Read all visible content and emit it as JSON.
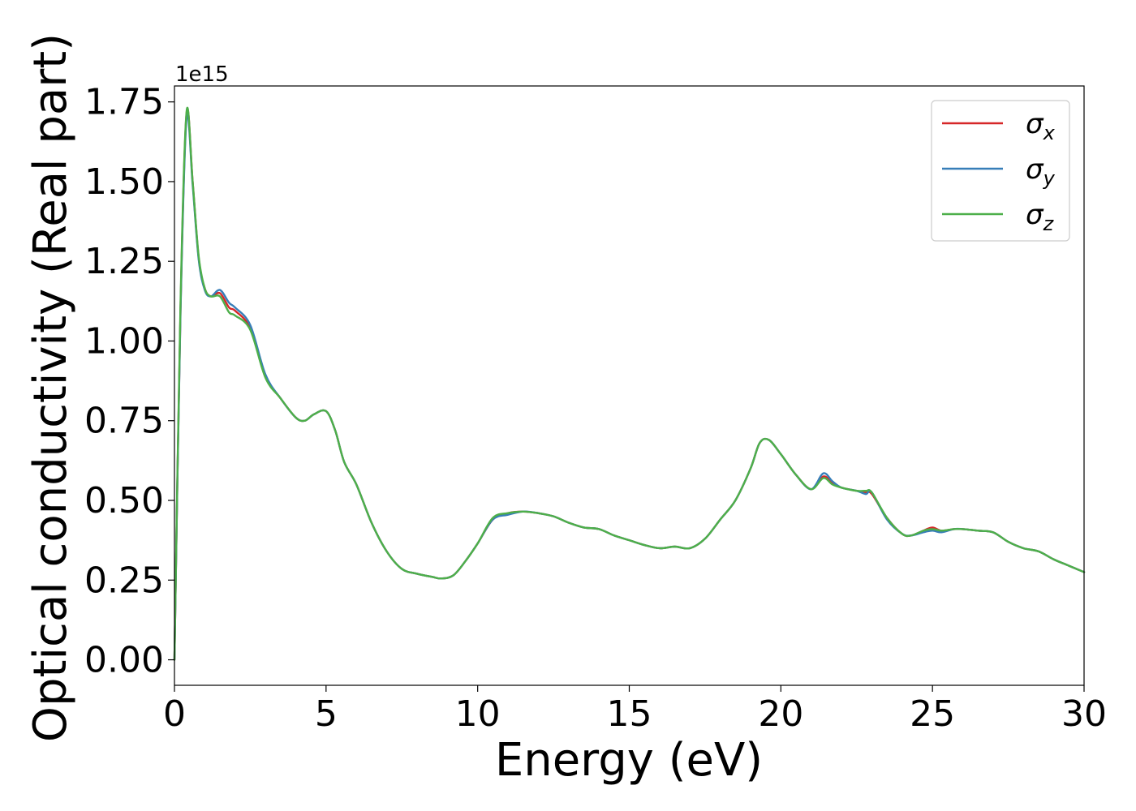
{
  "chart_data": {
    "type": "line",
    "title": "",
    "xlabel": "Energy (eV)",
    "ylabel": "Optical conductivity (Real part)",
    "offset_text": "1e15",
    "xlim": [
      0,
      30
    ],
    "ylim": [
      -0.08,
      1.8
    ],
    "x_ticks": [
      0,
      5,
      10,
      15,
      20,
      25,
      30
    ],
    "x_tick_labels": [
      "0",
      "5",
      "10",
      "15",
      "20",
      "25",
      "30"
    ],
    "y_ticks": [
      0,
      0.25,
      0.5,
      0.75,
      1.0,
      1.25,
      1.5,
      1.75
    ],
    "y_tick_labels": [
      "0.00",
      "0.25",
      "0.50",
      "0.75",
      "1.00",
      "1.25",
      "1.50",
      "1.75"
    ],
    "grid": false,
    "legend_position": "top-right",
    "series": [
      {
        "name": "σx",
        "base": "σ",
        "sub": "x",
        "color": "#d62728",
        "x": [
          0,
          0.2,
          0.4,
          0.6,
          0.8,
          1.0,
          1.2,
          1.5,
          1.8,
          2.0,
          2.5,
          3.0,
          3.5,
          4.0,
          4.3,
          4.6,
          5.0,
          5.3,
          5.6,
          6.0,
          6.5,
          7.0,
          7.5,
          8.0,
          8.5,
          8.8,
          9.2,
          9.6,
          10.0,
          10.5,
          11.0,
          11.5,
          12.0,
          12.5,
          13.0,
          13.5,
          14.0,
          14.5,
          15.0,
          15.5,
          16.0,
          16.5,
          17.0,
          17.5,
          18.0,
          18.5,
          19.0,
          19.3,
          19.6,
          20.0,
          20.5,
          21.0,
          21.4,
          21.7,
          22.0,
          22.5,
          22.8,
          23.0,
          23.5,
          24.0,
          24.3,
          24.7,
          25.0,
          25.3,
          25.7,
          26.0,
          26.5,
          27.0,
          27.5,
          28.0,
          28.5,
          29.0,
          29.5,
          30.0
        ],
        "y": [
          0.0,
          1.1,
          1.715,
          1.5,
          1.26,
          1.165,
          1.14,
          1.15,
          1.105,
          1.095,
          1.04,
          0.89,
          0.82,
          0.76,
          0.75,
          0.77,
          0.78,
          0.72,
          0.62,
          0.55,
          0.43,
          0.34,
          0.285,
          0.27,
          0.26,
          0.255,
          0.265,
          0.31,
          0.365,
          0.44,
          0.46,
          0.465,
          0.46,
          0.45,
          0.43,
          0.415,
          0.41,
          0.39,
          0.375,
          0.36,
          0.35,
          0.355,
          0.35,
          0.38,
          0.44,
          0.5,
          0.6,
          0.68,
          0.69,
          0.645,
          0.58,
          0.535,
          0.575,
          0.555,
          0.54,
          0.53,
          0.525,
          0.52,
          0.445,
          0.395,
          0.39,
          0.405,
          0.415,
          0.405,
          0.41,
          0.41,
          0.405,
          0.4,
          0.37,
          0.35,
          0.34,
          0.315,
          0.295,
          0.275
        ]
      },
      {
        "name": "σy",
        "base": "σ",
        "sub": "y",
        "color": "#377eb8",
        "x": [
          0,
          0.2,
          0.4,
          0.6,
          0.8,
          1.0,
          1.2,
          1.5,
          1.8,
          2.0,
          2.5,
          3.0,
          3.5,
          4.0,
          4.3,
          4.6,
          5.0,
          5.3,
          5.6,
          6.0,
          6.5,
          7.0,
          7.5,
          8.0,
          8.5,
          8.8,
          9.2,
          9.6,
          10.0,
          10.5,
          11.0,
          11.5,
          12.0,
          12.5,
          13.0,
          13.5,
          14.0,
          14.5,
          15.0,
          15.5,
          16.0,
          16.5,
          17.0,
          17.5,
          18.0,
          18.5,
          19.0,
          19.3,
          19.6,
          20.0,
          20.5,
          21.0,
          21.4,
          21.7,
          22.0,
          22.5,
          22.8,
          23.0,
          23.5,
          24.0,
          24.3,
          24.7,
          25.0,
          25.3,
          25.7,
          26.0,
          26.5,
          27.0,
          27.5,
          28.0,
          28.5,
          29.0,
          29.5,
          30.0
        ],
        "y": [
          0.0,
          1.09,
          1.7,
          1.49,
          1.255,
          1.16,
          1.14,
          1.16,
          1.12,
          1.105,
          1.05,
          0.895,
          0.82,
          0.76,
          0.75,
          0.77,
          0.78,
          0.72,
          0.62,
          0.55,
          0.43,
          0.34,
          0.285,
          0.27,
          0.26,
          0.255,
          0.265,
          0.31,
          0.365,
          0.44,
          0.455,
          0.465,
          0.46,
          0.45,
          0.43,
          0.415,
          0.41,
          0.39,
          0.375,
          0.36,
          0.35,
          0.355,
          0.35,
          0.38,
          0.44,
          0.5,
          0.6,
          0.68,
          0.69,
          0.645,
          0.58,
          0.535,
          0.585,
          0.56,
          0.54,
          0.53,
          0.52,
          0.525,
          0.44,
          0.395,
          0.39,
          0.4,
          0.405,
          0.4,
          0.41,
          0.41,
          0.405,
          0.4,
          0.37,
          0.35,
          0.34,
          0.315,
          0.295,
          0.275
        ]
      },
      {
        "name": "σz",
        "base": "σ",
        "sub": "z",
        "color": "#4daf4a",
        "x": [
          0,
          0.2,
          0.4,
          0.6,
          0.8,
          1.0,
          1.2,
          1.5,
          1.8,
          2.0,
          2.5,
          3.0,
          3.5,
          4.0,
          4.3,
          4.6,
          5.0,
          5.3,
          5.6,
          6.0,
          6.5,
          7.0,
          7.5,
          8.0,
          8.5,
          8.8,
          9.2,
          9.6,
          10.0,
          10.5,
          11.0,
          11.5,
          12.0,
          12.5,
          13.0,
          13.5,
          14.0,
          14.5,
          15.0,
          15.5,
          16.0,
          16.5,
          17.0,
          17.5,
          18.0,
          18.5,
          19.0,
          19.3,
          19.6,
          20.0,
          20.5,
          21.0,
          21.4,
          21.7,
          22.0,
          22.5,
          22.8,
          23.0,
          23.5,
          24.0,
          24.3,
          24.7,
          25.0,
          25.3,
          25.7,
          26.0,
          26.5,
          27.0,
          27.5,
          28.0,
          28.5,
          29.0,
          29.5,
          30.0
        ],
        "y": [
          0.0,
          1.12,
          1.72,
          1.5,
          1.265,
          1.165,
          1.14,
          1.14,
          1.09,
          1.08,
          1.035,
          0.885,
          0.82,
          0.76,
          0.75,
          0.77,
          0.78,
          0.72,
          0.62,
          0.55,
          0.43,
          0.34,
          0.285,
          0.27,
          0.26,
          0.255,
          0.265,
          0.31,
          0.365,
          0.445,
          0.46,
          0.465,
          0.46,
          0.45,
          0.43,
          0.415,
          0.41,
          0.39,
          0.375,
          0.36,
          0.35,
          0.355,
          0.35,
          0.38,
          0.44,
          0.5,
          0.6,
          0.68,
          0.69,
          0.645,
          0.58,
          0.535,
          0.57,
          0.55,
          0.54,
          0.53,
          0.53,
          0.525,
          0.445,
          0.395,
          0.39,
          0.405,
          0.41,
          0.405,
          0.41,
          0.41,
          0.405,
          0.4,
          0.37,
          0.35,
          0.34,
          0.315,
          0.295,
          0.275
        ]
      }
    ]
  }
}
